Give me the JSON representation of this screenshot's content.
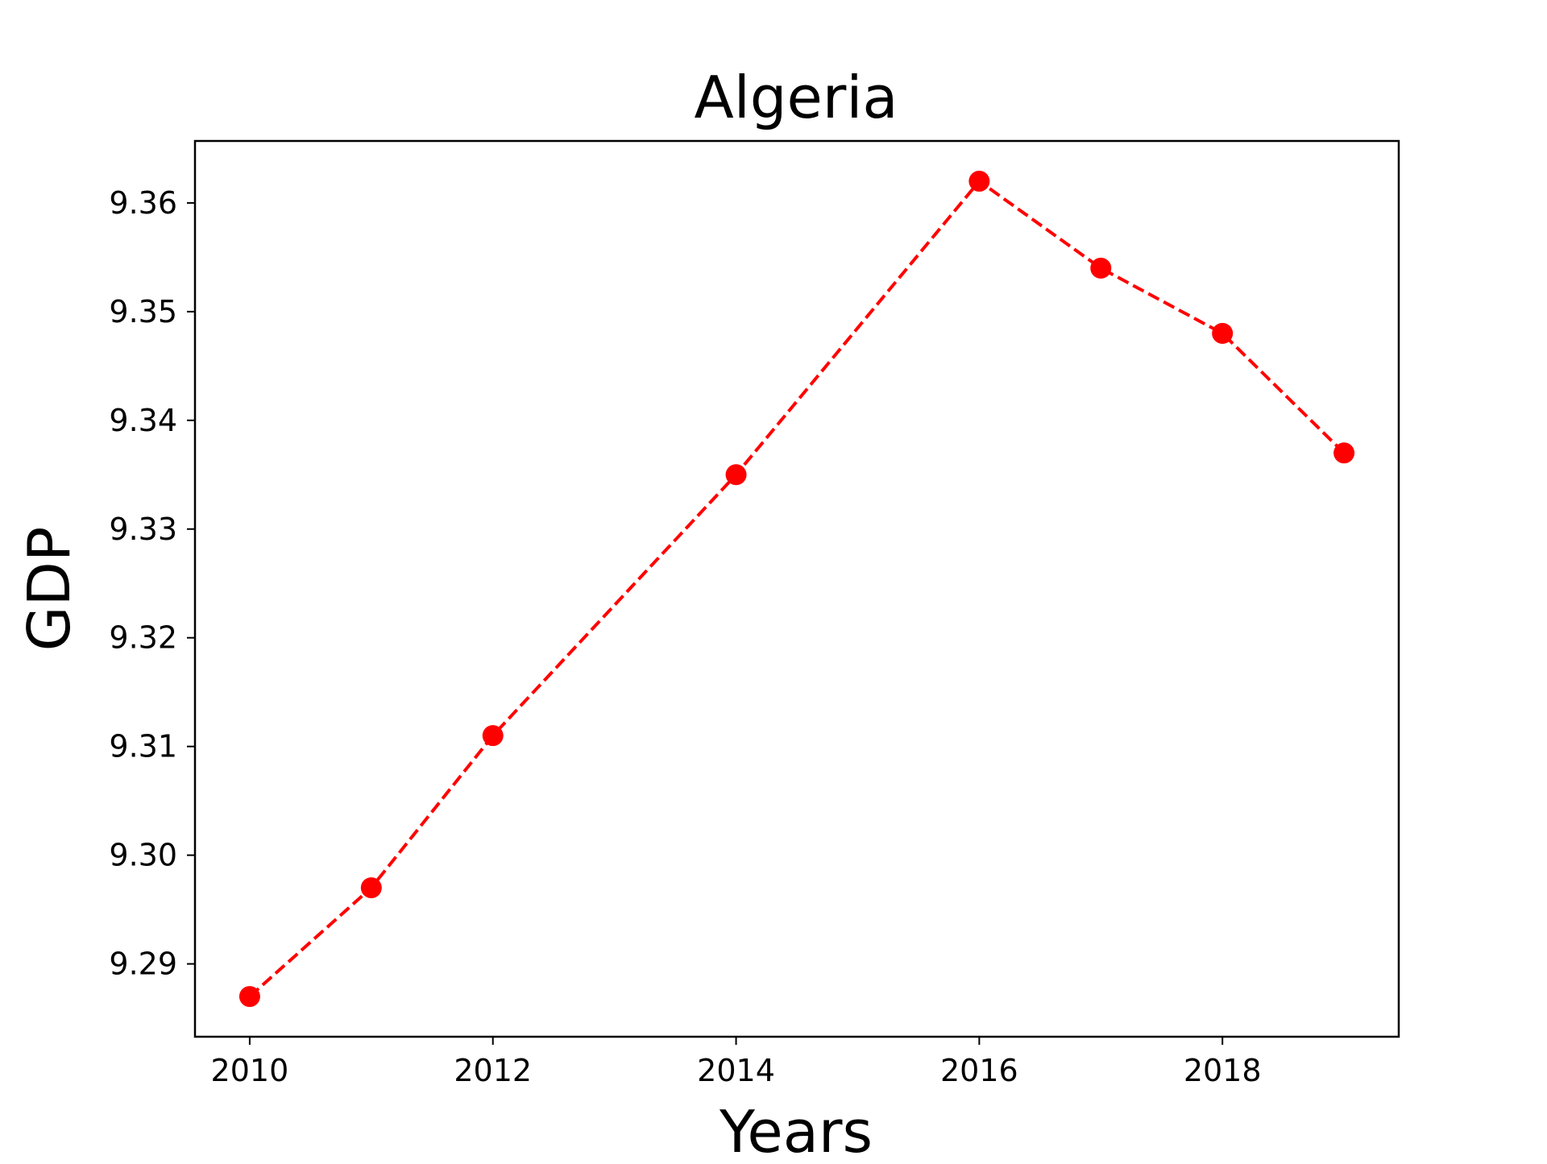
{
  "chart_data": {
    "type": "line",
    "title": "Algeria",
    "xlabel": "Years",
    "ylabel": "GDP",
    "x": [
      2010,
      2011,
      2012,
      2014,
      2016,
      2017,
      2018,
      2019
    ],
    "series": [
      {
        "values": [
          9.287,
          9.297,
          9.311,
          9.335,
          9.362,
          9.354,
          9.348,
          9.337
        ],
        "color": "#ff0000",
        "line_style": "dashed",
        "marker": "circle"
      }
    ],
    "xlim": [
      2009.55,
      2019.45
    ],
    "ylim": [
      9.2833,
      9.3657
    ],
    "xticks": [
      "2010",
      "2012",
      "2014",
      "2016",
      "2018"
    ],
    "yticks": [
      "9.29",
      "9.30",
      "9.31",
      "9.32",
      "9.33",
      "9.34",
      "9.35",
      "9.36"
    ],
    "grid": false,
    "legend": "none"
  }
}
